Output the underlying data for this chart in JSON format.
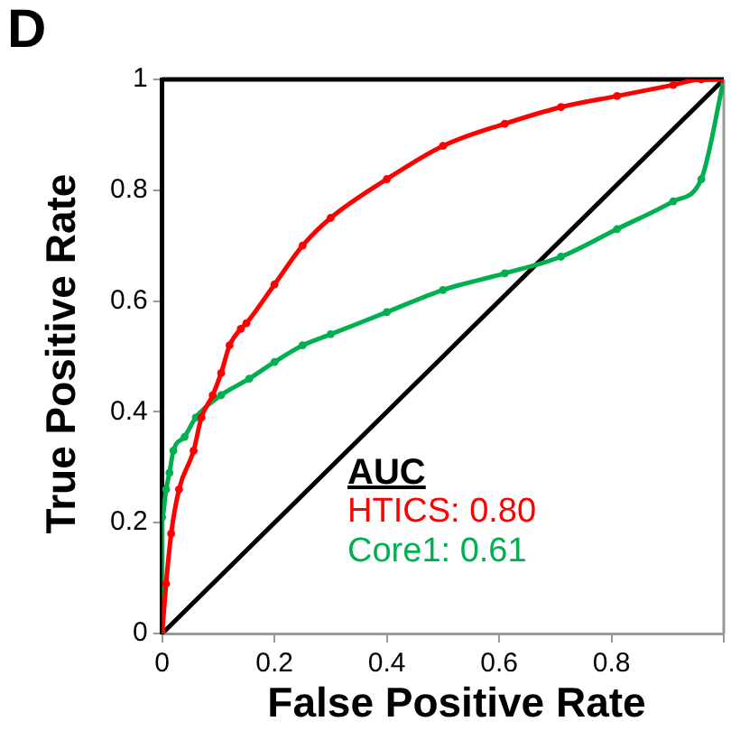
{
  "chart_data": {
    "type": "line",
    "title": "D",
    "xlabel": "False Positive Rate",
    "ylabel": "True Positive Rate",
    "legend_title": "AUC",
    "legend": "bottom right",
    "grid": false,
    "line_style": "solid",
    "xlim": [
      0,
      1
    ],
    "xticks": [
      0,
      0.2,
      0.4,
      0.6,
      0.8,
      {
        "value": 1,
        "label": null
      }
    ],
    "ylim": [
      0,
      1
    ],
    "yticks": [
      0,
      0.2,
      0.4,
      0.6,
      0.8,
      1
    ],
    "series": [
      {
        "name": "HTICS: 0.80",
        "color": "#ff0000",
        "marker": "circle",
        "x": [
          0,
          0.007,
          0.016,
          0.03,
          0.056,
          0.07,
          0.09,
          0.105,
          0.12,
          0.14,
          0.15,
          0.2,
          0.25,
          0.3,
          0.4,
          0.5,
          0.61,
          0.71,
          0.81,
          0.91,
          0.96,
          1
        ],
        "values": [
          0,
          0.09,
          0.18,
          0.26,
          0.33,
          0.39,
          0.43,
          0.47,
          0.52,
          0.55,
          0.56,
          0.63,
          0.7,
          0.75,
          0.82,
          0.88,
          0.92,
          0.95,
          0.97,
          0.99,
          1,
          1
        ]
      },
      {
        "name": "Core1: 0.61",
        "color": "#00b050",
        "marker": "circle",
        "x": [
          0,
          0,
          0.007,
          0.013,
          0.02,
          0.04,
          0.06,
          0.105,
          0.155,
          0.2,
          0.25,
          0.3,
          0.4,
          0.5,
          0.61,
          0.71,
          0.81,
          0.91,
          0.96,
          1
        ],
        "values": [
          0,
          0.21,
          0.26,
          0.29,
          0.33,
          0.355,
          0.39,
          0.43,
          0.46,
          0.49,
          0.52,
          0.54,
          0.58,
          0.62,
          0.65,
          0.68,
          0.73,
          0.78,
          0.82,
          1
        ]
      },
      {
        "color": "#000000",
        "marker": "none",
        "x": [
          0,
          1
        ],
        "values": [
          0,
          1
        ]
      }
    ]
  }
}
